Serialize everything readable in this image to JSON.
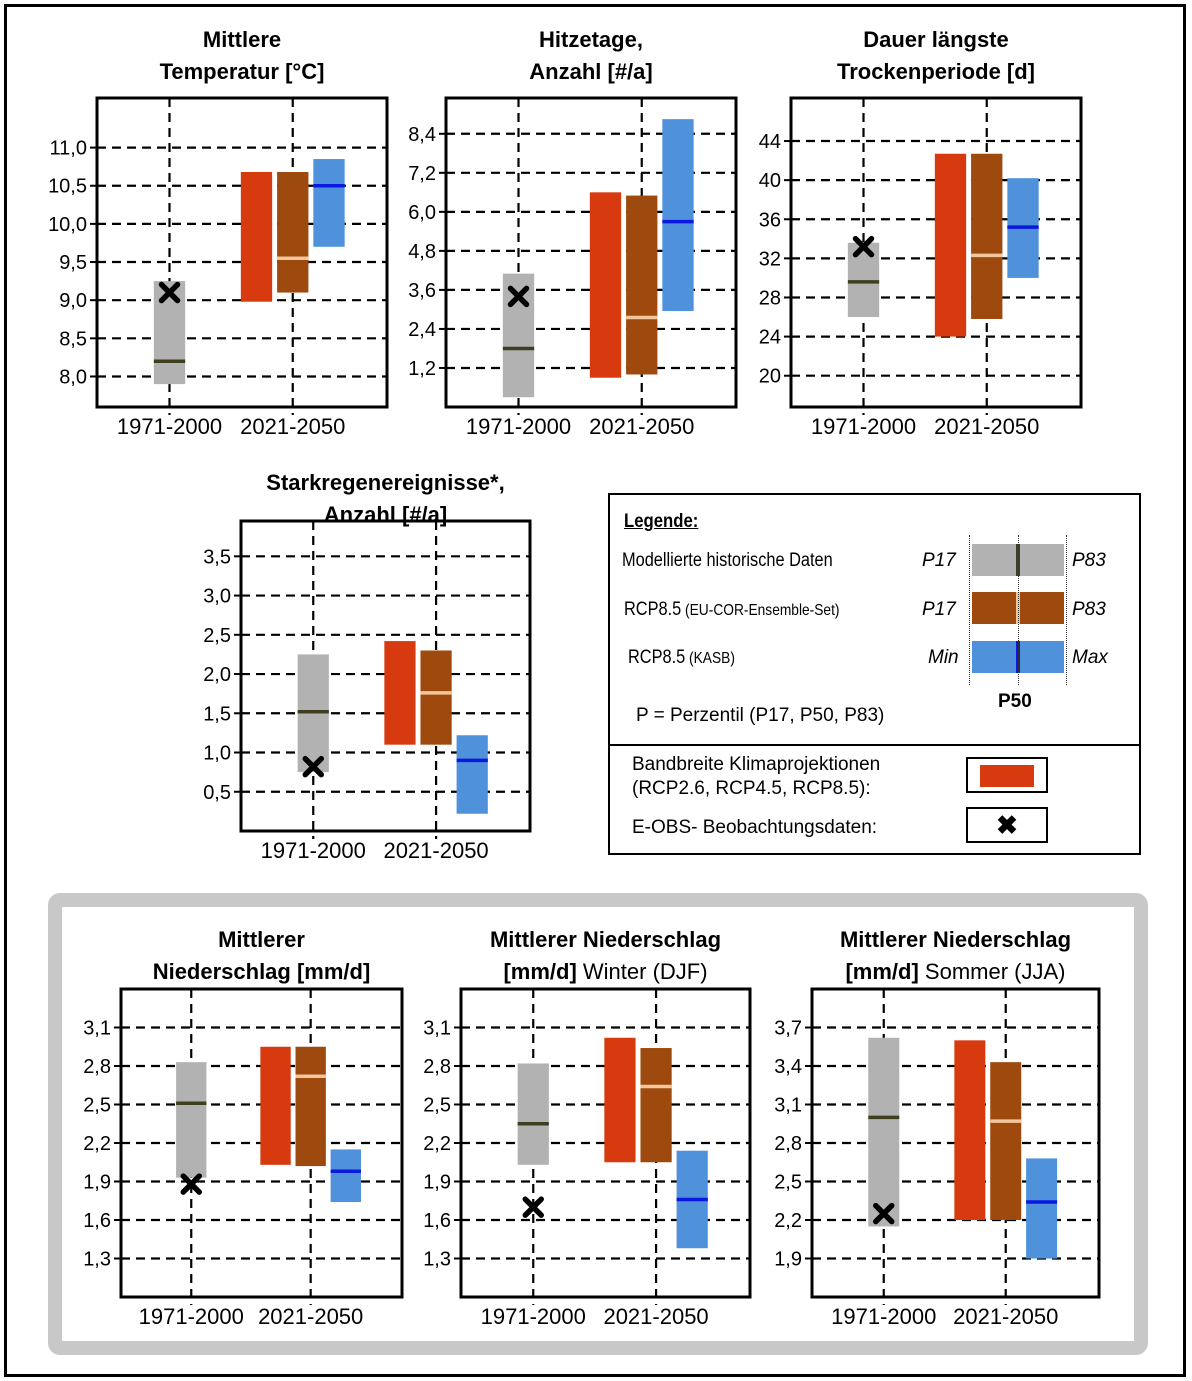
{
  "colors": {
    "hist": "#b2b2b2",
    "hist_median": "#3f3f1f",
    "red": "#d63a0e",
    "brown": "#9e4a0e",
    "brown_median": "#f2c79e",
    "blue": "#4f92db",
    "blue_median": "#0a17e0",
    "marker": "#000000"
  },
  "chart_data": [
    {
      "type": "range-bar",
      "title": [
        "Mittlere",
        "Temperatur [°C]"
      ],
      "title_bold": [
        true,
        true
      ],
      "categories": [
        "1971-2000",
        "2021-2050"
      ],
      "yticks": [
        "8,0",
        "8,5",
        "9,0",
        "9,5",
        "10,0",
        "10,5",
        "11,0"
      ],
      "ytick_values": [
        8.0,
        8.5,
        9.0,
        9.5,
        10.0,
        10.5,
        11.0
      ],
      "ylim": [
        7.6,
        11.65
      ],
      "historical": {
        "low": 7.9,
        "high": 9.25,
        "median": 8.2
      },
      "observed": 9.1,
      "bandbreite": {
        "low": 8.98,
        "high": 10.68
      },
      "eu_cor": {
        "low": 9.1,
        "high": 10.68,
        "median": 9.55
      },
      "kasb": {
        "low": 9.7,
        "high": 10.85,
        "median": 10.5
      }
    },
    {
      "type": "range-bar",
      "title": [
        "Hitzetage,",
        "Anzahl [#/a]"
      ],
      "title_bold": [
        true,
        true
      ],
      "categories": [
        "1971-2000",
        "2021-2050"
      ],
      "yticks": [
        "1,2",
        "2,4",
        "3,6",
        "4,8",
        "6,0",
        "7,2",
        "8,4"
      ],
      "ytick_values": [
        1.2,
        2.4,
        3.6,
        4.8,
        6.0,
        7.2,
        8.4
      ],
      "ylim": [
        0.0,
        9.5
      ],
      "historical": {
        "low": 0.3,
        "high": 4.1,
        "median": 1.8
      },
      "observed": 3.4,
      "bandbreite": {
        "low": 0.9,
        "high": 6.6
      },
      "eu_cor": {
        "low": 1.0,
        "high": 6.5,
        "median": 2.75
      },
      "kasb": {
        "low": 2.95,
        "high": 8.85,
        "median": 5.7
      }
    },
    {
      "type": "range-bar",
      "title": [
        "Dauer längste",
        "Trockenperiode [d]"
      ],
      "title_bold": [
        true,
        true
      ],
      "categories": [
        "1971-2000",
        "2021-2050"
      ],
      "yticks": [
        "20",
        "24",
        "28",
        "32",
        "36",
        "40",
        "44"
      ],
      "ytick_values": [
        20,
        24,
        28,
        32,
        36,
        40,
        44
      ],
      "ylim": [
        16.8,
        48.4
      ],
      "historical": {
        "low": 26.0,
        "high": 33.6,
        "median": 29.6
      },
      "observed": 33.2,
      "bandbreite": {
        "low": 24.0,
        "high": 42.7
      },
      "eu_cor": {
        "low": 25.8,
        "high": 42.7,
        "median": 32.3
      },
      "kasb": {
        "low": 30.0,
        "high": 40.2,
        "median": 35.2
      }
    },
    {
      "type": "range-bar",
      "title": [
        "Starkregenereignisse*,",
        "Anzahl [#/a]"
      ],
      "title_bold": [
        true,
        true
      ],
      "categories": [
        "1971-2000",
        "2021-2050"
      ],
      "yticks": [
        "0,5",
        "1,0",
        "1,5",
        "2,0",
        "2,5",
        "3,0",
        "3,5"
      ],
      "ytick_values": [
        0.5,
        1.0,
        1.5,
        2.0,
        2.5,
        3.0,
        3.5
      ],
      "ylim": [
        0.0,
        3.95
      ],
      "historical": {
        "low": 0.75,
        "high": 2.25,
        "median": 1.52
      },
      "observed": 0.82,
      "bandbreite": {
        "low": 1.1,
        "high": 2.42
      },
      "eu_cor": {
        "low": 1.1,
        "high": 2.3,
        "median": 1.76
      },
      "kasb": {
        "low": 0.22,
        "high": 1.22,
        "median": 0.9
      }
    },
    {
      "type": "range-bar",
      "title": [
        "Mittlerer",
        "Niederschlag [mm/d]"
      ],
      "title_bold": [
        true,
        true
      ],
      "categories": [
        "1971-2000",
        "2021-2050"
      ],
      "yticks": [
        "1,3",
        "1,6",
        "1,9",
        "2,2",
        "2,5",
        "2,8",
        "3,1"
      ],
      "ytick_values": [
        1.3,
        1.6,
        1.9,
        2.2,
        2.5,
        2.8,
        3.1
      ],
      "ylim": [
        1.0,
        3.4
      ],
      "historical": {
        "low": 1.93,
        "high": 2.83,
        "median": 2.51
      },
      "observed": 1.88,
      "bandbreite": {
        "low": 2.03,
        "high": 2.95
      },
      "eu_cor": {
        "low": 2.02,
        "high": 2.95,
        "median": 2.72
      },
      "kasb": {
        "low": 1.74,
        "high": 2.15,
        "median": 1.98
      }
    },
    {
      "type": "range-bar",
      "title": [
        "Mittlerer Niederschlag",
        "[mm/d] Winter (DJF)"
      ],
      "title_parts": [
        [
          {
            "text": "Mittlerer Niederschlag",
            "bold": true
          }
        ],
        [
          {
            "text": "[mm/d]",
            "bold": true
          },
          {
            "text": " Winter (DJF)",
            "bold": false
          }
        ]
      ],
      "categories": [
        "1971-2000",
        "2021-2050"
      ],
      "yticks": [
        "1,3",
        "1,6",
        "1,9",
        "2,2",
        "2,5",
        "2,8",
        "3,1"
      ],
      "ytick_values": [
        1.3,
        1.6,
        1.9,
        2.2,
        2.5,
        2.8,
        3.1
      ],
      "ylim": [
        1.0,
        3.4
      ],
      "historical": {
        "low": 2.03,
        "high": 2.82,
        "median": 2.35
      },
      "observed": 1.7,
      "bandbreite": {
        "low": 2.05,
        "high": 3.02
      },
      "eu_cor": {
        "low": 2.05,
        "high": 2.94,
        "median": 2.64
      },
      "kasb": {
        "low": 1.38,
        "high": 2.14,
        "median": 1.76
      }
    },
    {
      "type": "range-bar",
      "title": [
        "Mittlerer Niederschlag",
        "[mm/d] Sommer (JJA)"
      ],
      "title_parts": [
        [
          {
            "text": "Mittlerer Niederschlag",
            "bold": true
          }
        ],
        [
          {
            "text": "[mm/d]",
            "bold": true
          },
          {
            "text": " Sommer (JJA)",
            "bold": false
          }
        ]
      ],
      "categories": [
        "1971-2000",
        "2021-2050"
      ],
      "yticks": [
        "1,9",
        "2,2",
        "2,5",
        "2,8",
        "3,1",
        "3,4",
        "3,7"
      ],
      "ytick_values": [
        1.9,
        2.2,
        2.5,
        2.8,
        3.1,
        3.4,
        3.7
      ],
      "ylim": [
        1.6,
        4.0
      ],
      "historical": {
        "low": 2.15,
        "high": 3.62,
        "median": 3.0
      },
      "observed": 2.25,
      "bandbreite": {
        "low": 2.2,
        "high": 3.6
      },
      "eu_cor": {
        "low": 2.2,
        "high": 3.43,
        "median": 2.97
      },
      "kasb": {
        "low": 1.9,
        "high": 2.68,
        "median": 2.34
      }
    }
  ],
  "legend": {
    "title": "Legende:",
    "rows": [
      {
        "label_main": "Modellierte historische Daten",
        "label_small": "",
        "lo": "P17",
        "hi": "P83",
        "series": "hist"
      },
      {
        "label_main": "RCP8.5",
        "label_small": " (EU-COR-Ensemble-Set)",
        "lo": "P17",
        "hi": "P83",
        "series": "eu_cor"
      },
      {
        "label_main": "RCP8.5",
        "label_small": " (KASB)",
        "lo": "Min",
        "hi": "Max",
        "series": "kasb"
      }
    ],
    "p50": "P50",
    "percentile_note": "P = Perzentil (P17, P50, P83)",
    "bandbreite_line1": "Bandbreite Klimaprojektionen",
    "bandbreite_line2": "(RCP2.6, RCP4.5, RCP8.5):",
    "observed_label": "E-OBS- Beobachtungsdaten:",
    "marker_glyph": "✖"
  }
}
